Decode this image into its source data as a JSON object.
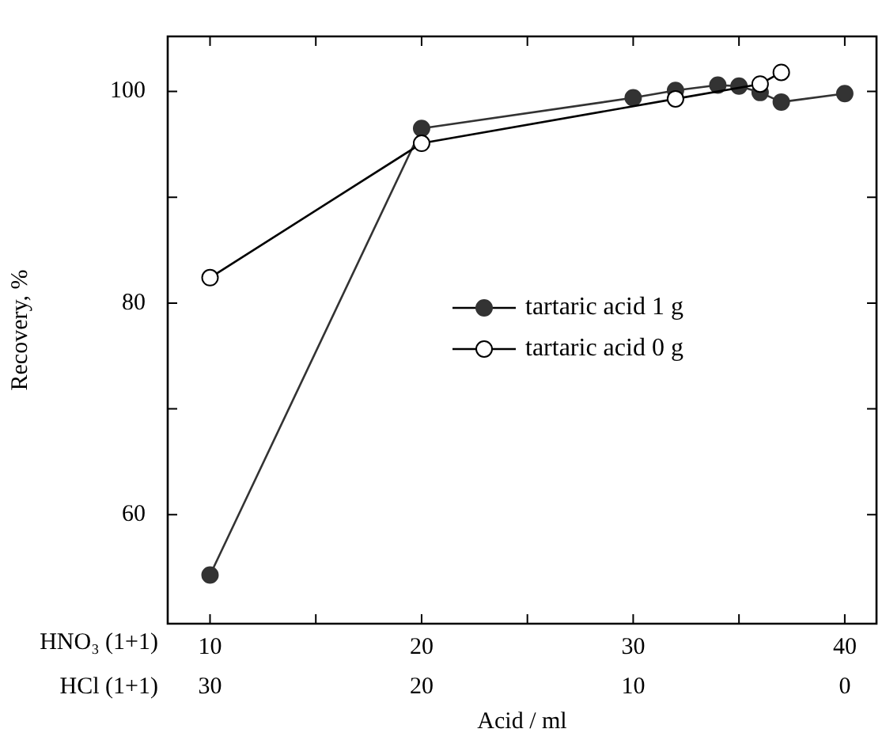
{
  "chart_data": {
    "type": "line",
    "xlabel": "Acid / ml",
    "ylabel": "Recovery, %",
    "annotations": [
      "HNO₃ (1+1)",
      "HCl (1+1)"
    ],
    "xlim": [
      8,
      41.5
    ],
    "xticks": [
      10,
      {
        "value": 15,
        "label": null
      },
      20,
      {
        "value": 25,
        "label": null
      },
      30,
      {
        "value": 35,
        "label": null
      },
      40
    ],
    "x2lim": [
      32,
      -1.5
    ],
    "x2ticks": [
      30,
      20,
      10,
      0
    ],
    "ylim": [
      49.7,
      105.2
    ],
    "yticks": [
      60,
      {
        "value": 70,
        "label": null
      },
      80,
      {
        "value": 90,
        "label": null
      },
      100
    ],
    "grid": false,
    "legend": "right",
    "marker": "circle",
    "line_style": "solid",
    "series": [
      {
        "name": "tartaric acid 0 g",
        "color": "#000000",
        "x": [
          10,
          20,
          30,
          32,
          36,
          37
        ],
        "values": [
          82.4,
          95.1,
          null,
          99.3,
          100.7,
          101.8
        ]
      },
      {
        "name": "tartaric acid 1 g",
        "color": "#333333",
        "x": [
          10,
          20,
          30,
          32,
          34,
          35,
          36,
          37,
          40
        ],
        "values": [
          54.3,
          96.5,
          99.4,
          100.1,
          100.6,
          100.5,
          99.9,
          99.0,
          99.8
        ]
      }
    ]
  }
}
